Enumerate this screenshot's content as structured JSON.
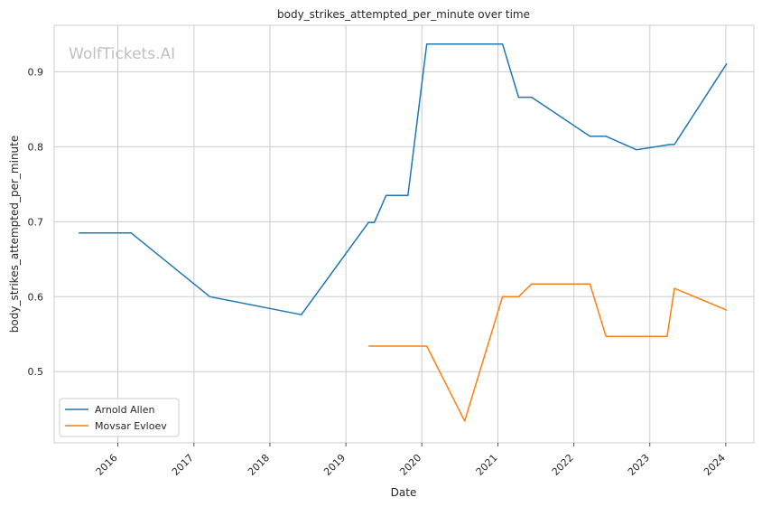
{
  "chart_data": {
    "type": "line",
    "title": "body_strikes_attempted_per_minute over time",
    "xlabel": "Date",
    "ylabel": "body_strikes_attempted_per_minute",
    "watermark": "WolfTickets.AI",
    "x_ticks": [
      "2016",
      "2017",
      "2018",
      "2019",
      "2020",
      "2021",
      "2022",
      "2023",
      "2024"
    ],
    "y_ticks": [
      "0.5",
      "0.6",
      "0.7",
      "0.8",
      "0.9"
    ],
    "xlim": [
      "2015-03-01",
      "2024-05-15"
    ],
    "ylim": [
      0.405,
      0.962
    ],
    "grid": true,
    "legend_position": "lower-left",
    "series": [
      {
        "name": "Arnold Allen",
        "color": "#1f77b4",
        "points": [
          [
            "2015-06-27",
            0.685
          ],
          [
            "2016-03-05",
            0.685
          ],
          [
            "2017-03-18",
            0.6
          ],
          [
            "2018-06-01",
            0.576
          ],
          [
            "2019-04-20",
            0.699
          ],
          [
            "2019-05-18",
            0.699
          ],
          [
            "2019-07-13",
            0.735
          ],
          [
            "2019-10-26",
            0.735
          ],
          [
            "2020-01-25",
            0.937
          ],
          [
            "2021-01-23",
            0.937
          ],
          [
            "2021-04-10",
            0.866
          ],
          [
            "2021-06-12",
            0.866
          ],
          [
            "2022-03-19",
            0.814
          ],
          [
            "2022-06-04",
            0.814
          ],
          [
            "2022-10-29",
            0.796
          ],
          [
            "2023-04-08",
            0.803
          ],
          [
            "2023-04-29",
            0.803
          ],
          [
            "2024-01-06",
            0.911
          ]
        ]
      },
      {
        "name": "Movsar Evloev",
        "color": "#ff7f0e",
        "points": [
          [
            "2019-04-20",
            0.534
          ],
          [
            "2020-01-25",
            0.534
          ],
          [
            "2020-07-25",
            0.434
          ],
          [
            "2021-01-23",
            0.6
          ],
          [
            "2021-04-10",
            0.6
          ],
          [
            "2021-06-12",
            0.617
          ],
          [
            "2022-03-19",
            0.617
          ],
          [
            "2022-06-04",
            0.547
          ],
          [
            "2023-03-25",
            0.547
          ],
          [
            "2023-04-29",
            0.611
          ],
          [
            "2024-01-06",
            0.582
          ]
        ]
      }
    ]
  }
}
